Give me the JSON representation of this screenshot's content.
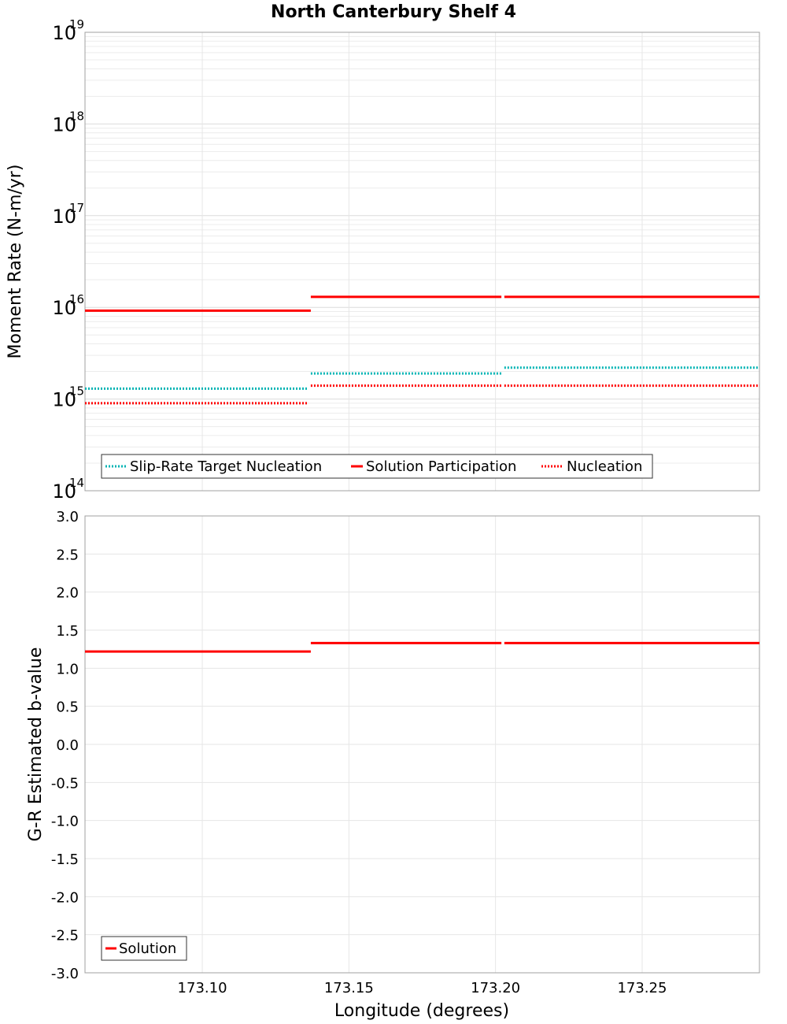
{
  "chart_data": [
    {
      "type": "line",
      "step": true,
      "title": "North Canterbury Shelf 4",
      "xlabel": "Longitude (degrees)",
      "ylabel": "Moment Rate (N-m/yr)",
      "yscale": "log",
      "ylim_exp": [
        14,
        19
      ],
      "ytick_base": "10",
      "ytick_exponents": [
        "14",
        "15",
        "16",
        "17",
        "18",
        "19"
      ],
      "xlim": [
        173.06,
        173.29
      ],
      "grid": true,
      "legend_position": "bottom-left",
      "series": [
        {
          "name": "Slip-Rate Target Nucleation",
          "color": "#00b4b4",
          "style": "dotted",
          "segments": [
            {
              "x": [
                173.06,
                173.136
              ],
              "y": 1300000000000000.0
            },
            {
              "x": [
                173.137,
                173.202
              ],
              "y": 1900000000000000.0
            },
            {
              "x": [
                173.203,
                173.29
              ],
              "y": 2200000000000000.0
            }
          ]
        },
        {
          "name": "Solution Participation",
          "color": "#ff0000",
          "style": "solid",
          "segments": [
            {
              "x": [
                173.06,
                173.137
              ],
              "y": 9200000000000000.0
            },
            {
              "x": [
                173.137,
                173.202
              ],
              "y": 1.3e+16
            },
            {
              "x": [
                173.203,
                173.29
              ],
              "y": 1.3e+16
            }
          ]
        },
        {
          "name": "Nucleation",
          "color": "#ff0000",
          "style": "dotted",
          "segments": [
            {
              "x": [
                173.06,
                173.136
              ],
              "y": 900000000000000.0
            },
            {
              "x": [
                173.137,
                173.202
              ],
              "y": 1400000000000000.0
            },
            {
              "x": [
                173.203,
                173.29
              ],
              "y": 1400000000000000.0
            }
          ]
        }
      ]
    },
    {
      "type": "line",
      "step": true,
      "xlabel": "Longitude (degrees)",
      "ylabel": "G-R Estimated b-value",
      "ylim": [
        -3.0,
        3.0
      ],
      "yticks": [
        "-3.0",
        "-2.5",
        "-2.0",
        "-1.5",
        "-1.0",
        "-0.5",
        "0.0",
        "0.5",
        "1.0",
        "1.5",
        "2.0",
        "2.5",
        "3.0"
      ],
      "xlim": [
        173.06,
        173.29
      ],
      "xticks": [
        "173.10",
        "173.15",
        "173.20",
        "173.25"
      ],
      "grid": true,
      "legend_position": "bottom-left",
      "series": [
        {
          "name": "Solution",
          "color": "#ff0000",
          "style": "solid",
          "segments": [
            {
              "x": [
                173.06,
                173.137
              ],
              "y": 1.22
            },
            {
              "x": [
                173.137,
                173.202
              ],
              "y": 1.33
            },
            {
              "x": [
                173.203,
                173.29
              ],
              "y": 1.33
            }
          ]
        }
      ]
    }
  ]
}
